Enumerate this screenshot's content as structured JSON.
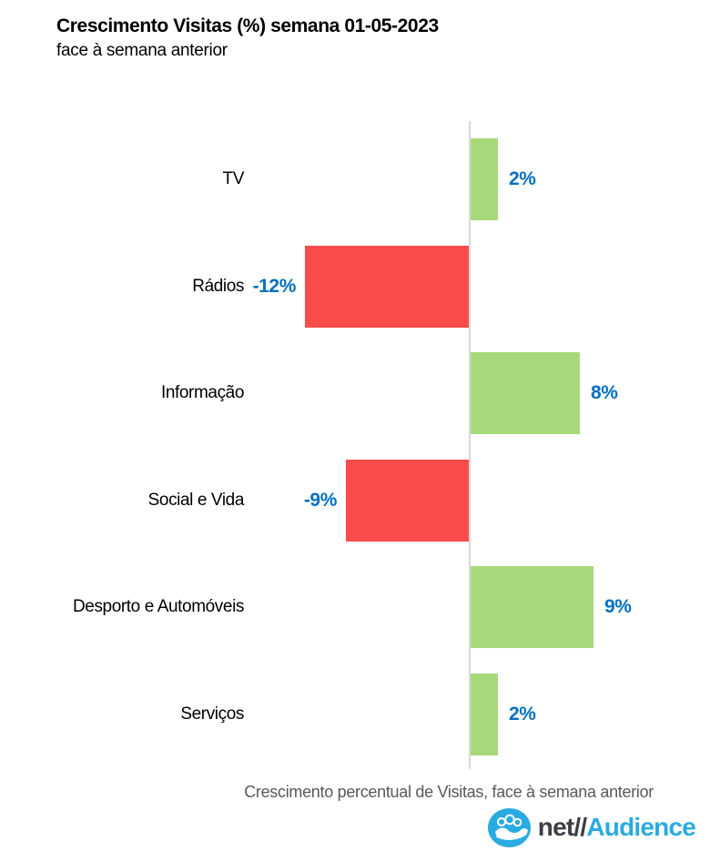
{
  "header": {
    "title": "Crescimento Visitas (%) semana 01-05-2023",
    "subtitle": "face à semana anterior"
  },
  "chart_data": {
    "type": "bar",
    "orientation": "horizontal",
    "title": "Crescimento Visitas (%) semana 01-05-2023",
    "subtitle": "face à semana anterior",
    "categories": [
      "TV",
      "Rádios",
      "Informação",
      "Social e Vida",
      "Desporto e Automóveis",
      "Serviços"
    ],
    "values": [
      2,
      -12,
      8,
      -9,
      9,
      2
    ],
    "value_labels": [
      "2%",
      "-12%",
      "8%",
      "-9%",
      "9%",
      "2%"
    ],
    "xlabel": "Crescimento percentual de Visitas, face à semana anterior",
    "ylabel": "",
    "xlim": [
      -14,
      14
    ],
    "grid": false,
    "legend": "none",
    "colors": {
      "positive": "#a6d97a",
      "negative": "#fc4b4b",
      "value_label": "#0070c0",
      "axis_line": "#d9d9d9",
      "category_label": "#000000"
    }
  },
  "footer": {
    "xlabel": "Crescimento percentual de Visitas, face à semana anterior",
    "logo": {
      "icon": "netaudience-people-icon",
      "text_dark": "net//",
      "text_accent": "Audience",
      "accent_color": "#29abe2"
    }
  }
}
